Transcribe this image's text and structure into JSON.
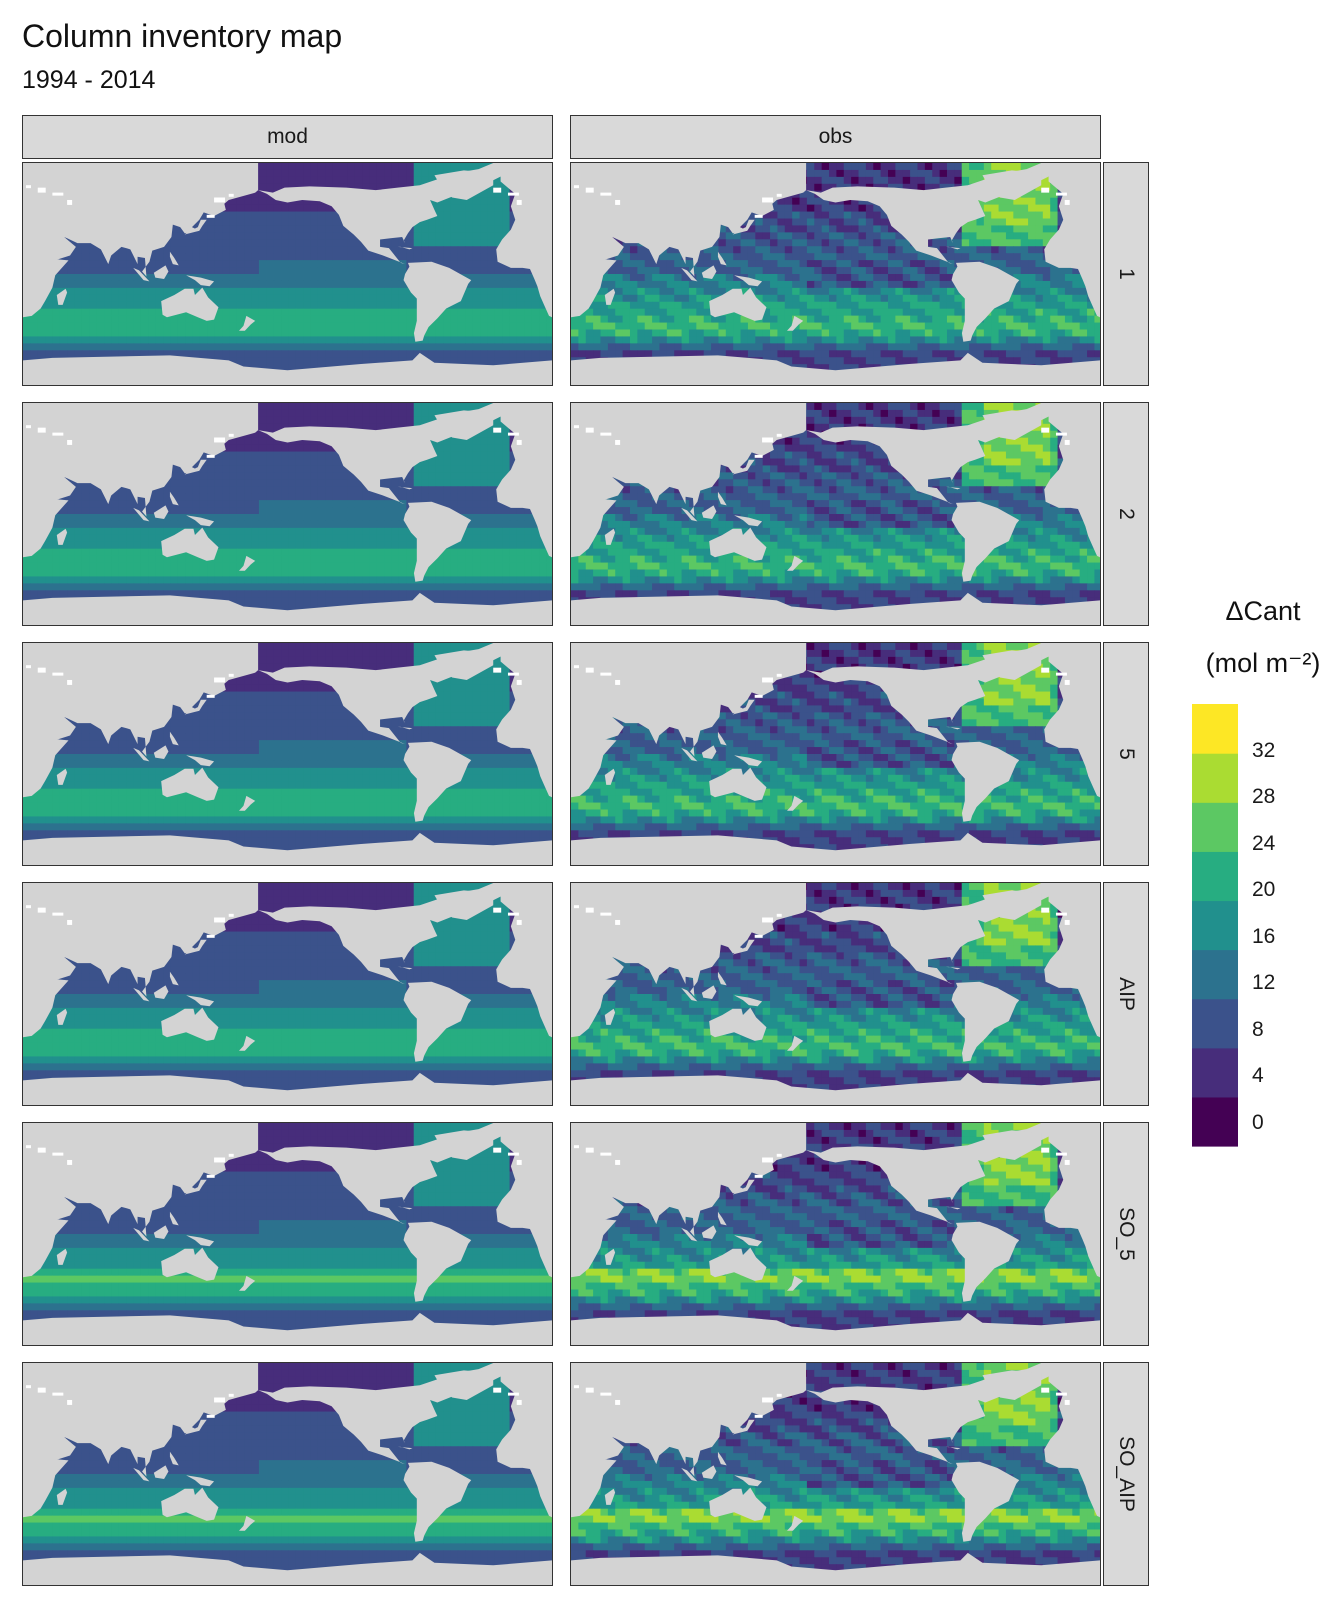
{
  "chart_data": {
    "type": "heatmap",
    "title": "Column inventory map",
    "subtitle": "1994 - 2014",
    "facet_columns": [
      "mod",
      "obs"
    ],
    "facet_rows": [
      "1",
      "2",
      "5",
      "AIP",
      "SO_5",
      "SO_AIP"
    ],
    "legend": {
      "title_main": "ΔCant",
      "title_unit": "(mol m⁻²)",
      "ticks": [
        "32",
        "28",
        "24",
        "20",
        "16",
        "12",
        "8",
        "4",
        "0"
      ],
      "tick_values": [
        32,
        28,
        24,
        20,
        16,
        12,
        8,
        4,
        0
      ],
      "range": [
        -2,
        36
      ],
      "bin_width": 4,
      "placement": "right",
      "colors": [
        "#440154",
        "#472d7b",
        "#3b528b",
        "#2c728e",
        "#21908d",
        "#27ad81",
        "#5cc863",
        "#aadc32",
        "#fde725"
      ]
    },
    "projection_center_lon": 180,
    "land_color": "#d3d3d3",
    "panels": [
      {
        "column": "mod",
        "row": "1",
        "pattern": "smooth"
      },
      {
        "column": "obs",
        "row": "1",
        "pattern": "detailed"
      },
      {
        "column": "mod",
        "row": "2",
        "pattern": "smooth"
      },
      {
        "column": "obs",
        "row": "2",
        "pattern": "detailed"
      },
      {
        "column": "mod",
        "row": "5",
        "pattern": "smooth"
      },
      {
        "column": "obs",
        "row": "5",
        "pattern": "detailed"
      },
      {
        "column": "mod",
        "row": "AIP",
        "pattern": "smooth"
      },
      {
        "column": "obs",
        "row": "AIP",
        "pattern": "detailed"
      },
      {
        "column": "mod",
        "row": "SO_5",
        "pattern": "smooth"
      },
      {
        "column": "obs",
        "row": "SO_5",
        "pattern": "detailed"
      },
      {
        "column": "mod",
        "row": "SO_AIP",
        "pattern": "smooth"
      },
      {
        "column": "obs",
        "row": "SO_AIP",
        "pattern": "detailed"
      }
    ]
  }
}
